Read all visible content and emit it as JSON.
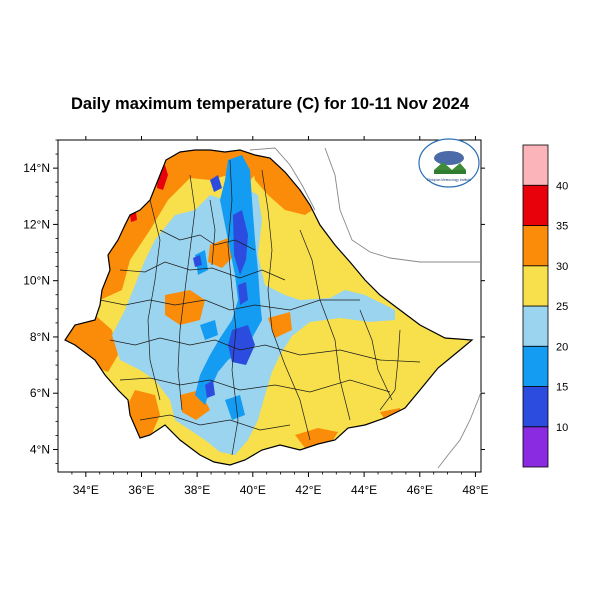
{
  "title": "Daily maximum temperature (C) for 10-11 Nov 2024",
  "logo": {
    "agency_text": "Ethiopian Meteorology Institute",
    "description": "agency logo"
  },
  "map": {
    "lon_range": [
      33,
      48.2
    ],
    "lat_range": [
      3.2,
      15.0
    ],
    "x_ticks": [
      "34°E",
      "36°E",
      "38°E",
      "40°E",
      "42°E",
      "44°E",
      "46°E",
      "48°E"
    ],
    "y_ticks": [
      "14°N",
      "12°N",
      "10°N",
      "8°N",
      "6°N",
      "4°N"
    ]
  },
  "colorbar": {
    "colors": [
      "#8a2be2",
      "#2c4ce0",
      "#149bf2",
      "#9bd4ef",
      "#f7e04b",
      "#fa8c0a",
      "#e8000b",
      "#fbb4b9"
    ],
    "labels": [
      "10",
      "15",
      "20",
      "25",
      "30",
      "35",
      "40"
    ]
  },
  "legend_colors": {
    "band_10_15": "#2c4ce0",
    "band_15_20": "#149bf2",
    "band_20_25": "#9bd4ef",
    "band_25_30": "#f7e04b",
    "band_30_35": "#fa8c0a",
    "band_35_40": "#e8000b"
  }
}
